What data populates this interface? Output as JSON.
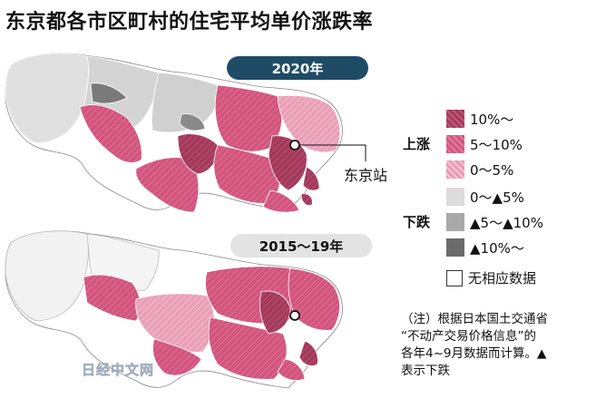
{
  "title": "东京都各市区町村的住宅平均单价涨跌率",
  "maps": [
    {
      "period_label": "2020年"
    },
    {
      "period_label": "2015～19年"
    }
  ],
  "station_label": "东京站",
  "legend": {
    "rise_group": "上涨",
    "fall_group": "下跌",
    "rise_items": [
      {
        "label": "10%～",
        "color": "#a33a5c"
      },
      {
        "label": "5～10%",
        "color": "#d2557e"
      },
      {
        "label": "0～5%",
        "color": "#e99ab4"
      }
    ],
    "fall_items": [
      {
        "label": "0～▲5%",
        "color": "#dcdcdc"
      },
      {
        "label": "▲5～▲10%",
        "color": "#a9a9a9"
      },
      {
        "label": "▲10%～",
        "color": "#6b6b6b"
      }
    ],
    "no_data": "无相应数据"
  },
  "note": {
    "line1": "（注）根据日本国土交通省",
    "line2": "“不动产交易价格信息”的",
    "line3": "各年4~9月数据而计算。▲",
    "line4": "表示下跌"
  },
  "watermark": "日经中文网",
  "colors": {
    "pill_bg_2020": "#1f4b66",
    "pill_bg_2015": "#e3e3e3",
    "outline": "#ffffff",
    "map_border": "#777777"
  }
}
